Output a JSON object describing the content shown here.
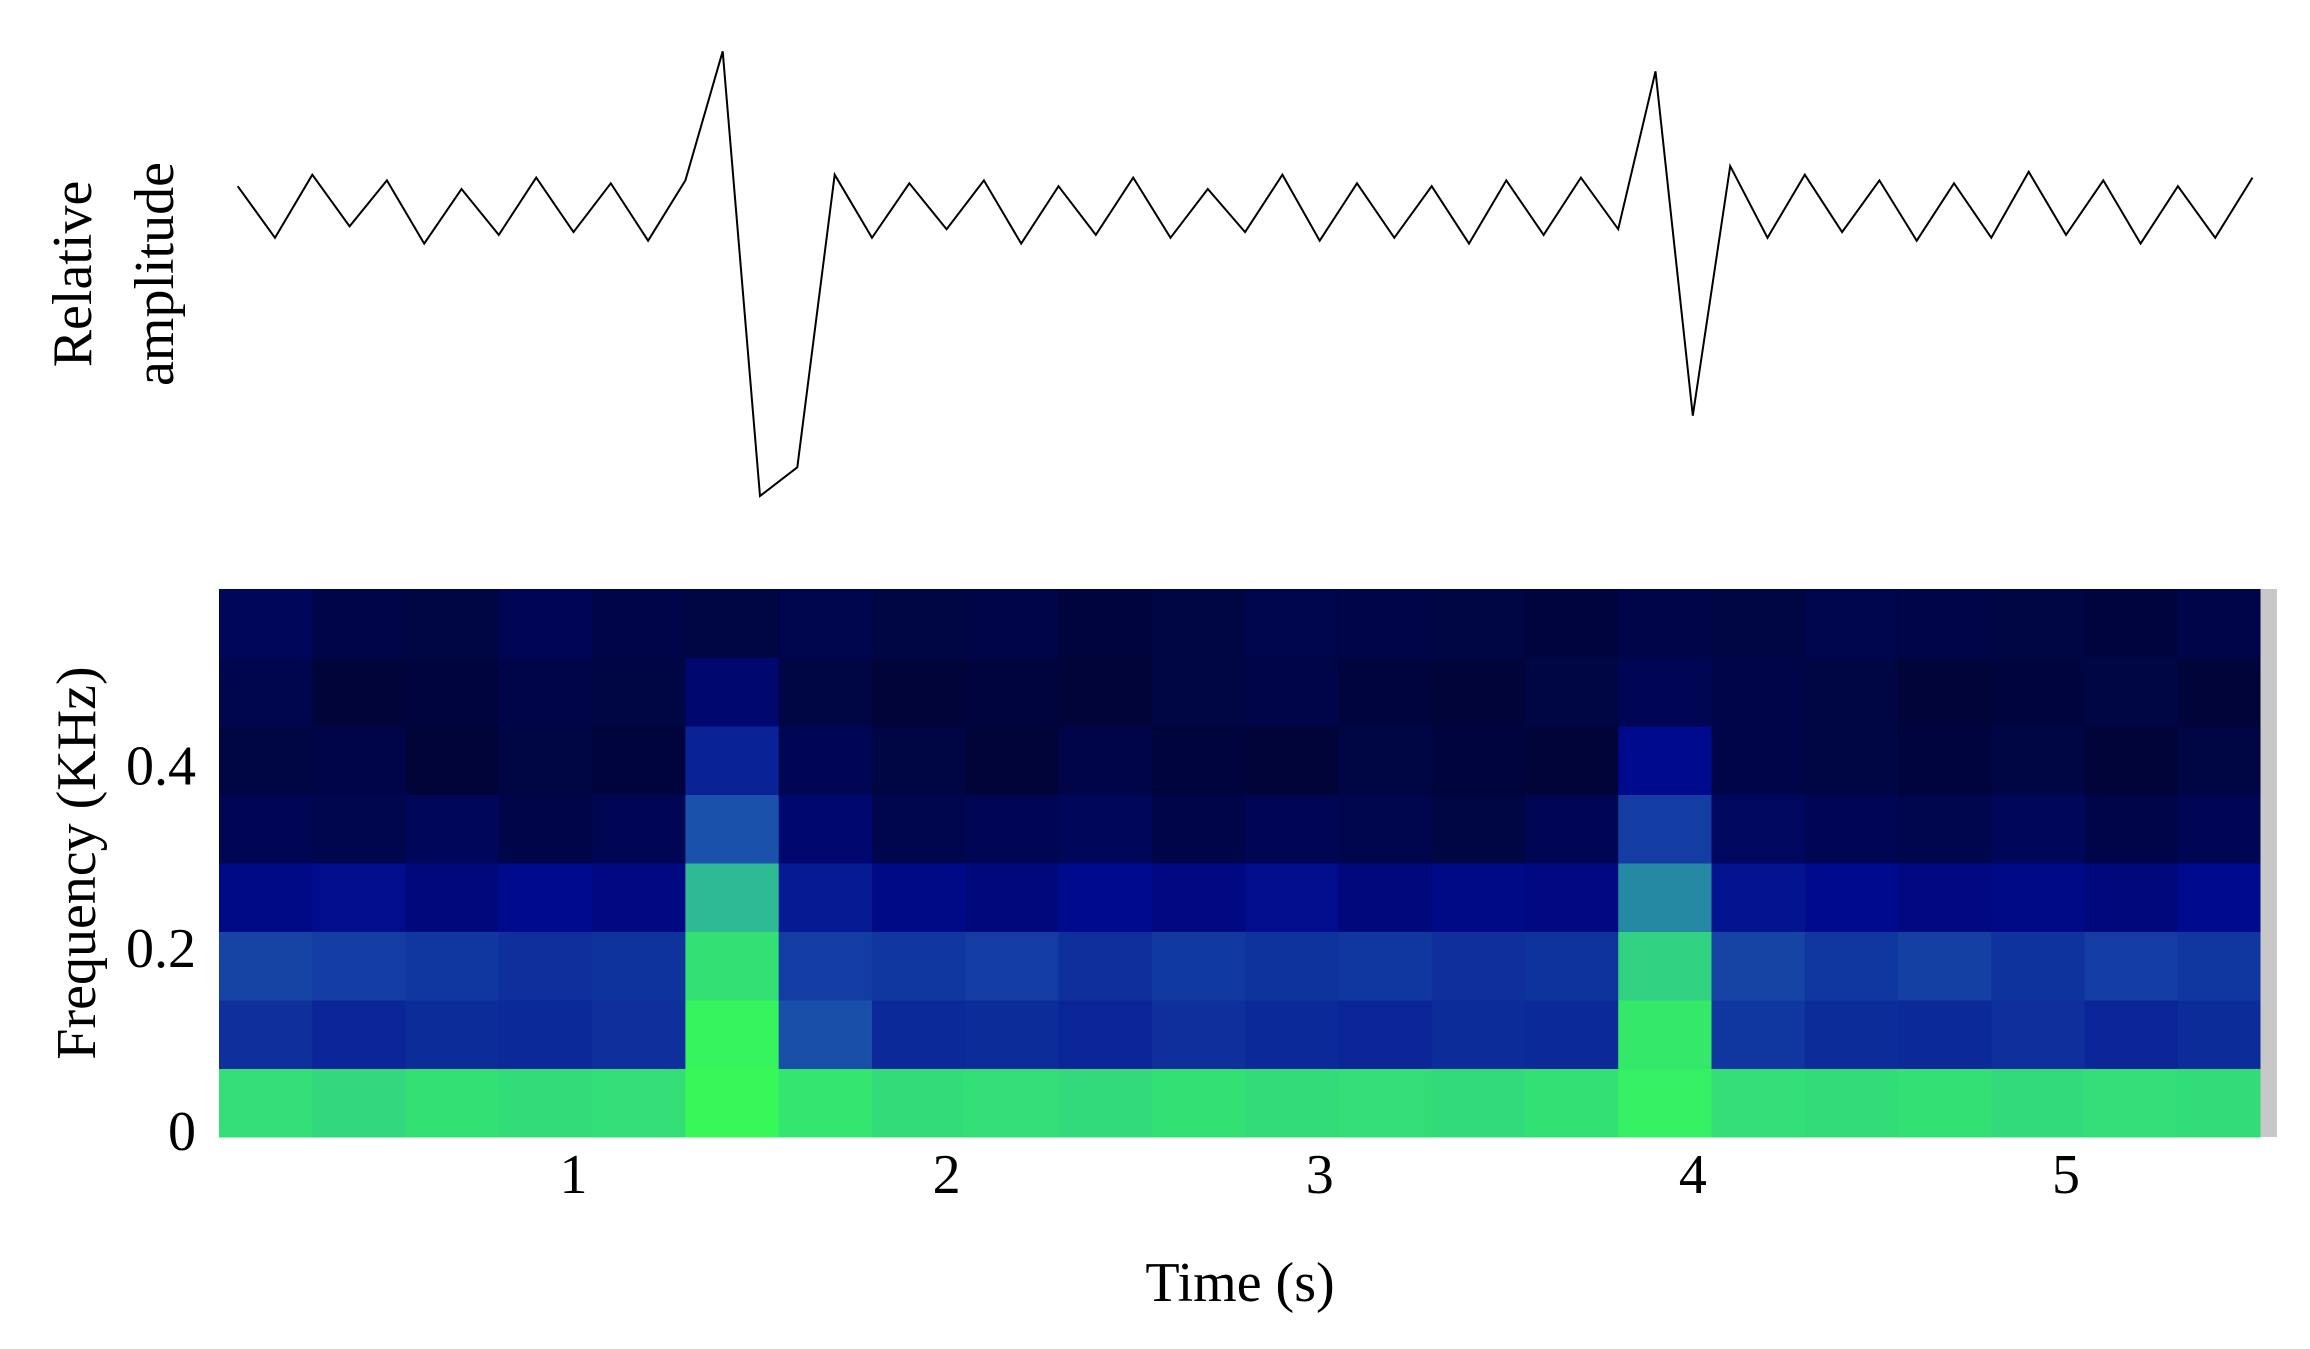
{
  "chart_data": [
    {
      "type": "line",
      "ylabel": [
        "Relative",
        "amplitude"
      ],
      "color": "#000000",
      "xlim": [
        0.05,
        5.52
      ],
      "ylim": [
        -1,
        0.6
      ],
      "x": [
        0.1,
        0.2,
        0.3,
        0.4,
        0.5,
        0.6,
        0.7,
        0.8,
        0.9,
        1.0,
        1.1,
        1.2,
        1.3,
        1.4,
        1.5,
        1.6,
        1.7,
        1.8,
        1.9,
        2.0,
        2.1,
        2.2,
        2.3,
        2.4,
        2.5,
        2.6,
        2.7,
        2.8,
        2.9,
        3.0,
        3.1,
        3.2,
        3.3,
        3.4,
        3.5,
        3.6,
        3.7,
        3.8,
        3.9,
        4.0,
        4.1,
        4.2,
        4.3,
        4.4,
        4.5,
        4.6,
        4.7,
        4.8,
        4.9,
        5.0,
        5.1,
        5.2,
        5.3,
        5.4,
        5.5
      ],
      "values": [
        0.08,
        -0.1,
        0.12,
        -0.06,
        0.1,
        -0.12,
        0.07,
        -0.09,
        0.11,
        -0.08,
        0.09,
        -0.11,
        0.1,
        0.55,
        -1.0,
        -0.9,
        0.12,
        -0.1,
        0.09,
        -0.07,
        0.1,
        -0.12,
        0.08,
        -0.09,
        0.11,
        -0.1,
        0.07,
        -0.08,
        0.12,
        -0.11,
        0.09,
        -0.1,
        0.08,
        -0.12,
        0.1,
        -0.09,
        0.11,
        -0.07,
        0.48,
        -0.72,
        0.15,
        -0.1,
        0.12,
        -0.08,
        0.1,
        -0.11,
        0.09,
        -0.1,
        0.13,
        -0.09,
        0.1,
        -0.12,
        0.08,
        -0.1,
        0.11
      ]
    },
    {
      "type": "heatmap",
      "xlabel": "Time (s)",
      "ylabel": "Frequency (KHz)",
      "xlim": [
        0.05,
        5.52
      ],
      "ylim": [
        0,
        0.6
      ],
      "xticks": [
        1,
        2,
        3,
        4,
        5
      ],
      "yticks": [
        0,
        0.2,
        0.4
      ],
      "colormap": [
        "#000000",
        "#000a8c",
        "#1f5fb0",
        "#2fc890",
        "#38ff50"
      ],
      "x_bins": [
        0.05,
        0.3,
        0.55,
        0.8,
        1.05,
        1.3,
        1.55,
        1.8,
        2.05,
        2.3,
        2.55,
        2.8,
        3.05,
        3.3,
        3.55,
        3.8,
        4.05,
        4.3,
        4.55,
        4.8,
        5.05,
        5.3,
        5.52
      ],
      "y_bins": [
        0,
        0.075,
        0.15,
        0.225,
        0.3,
        0.375,
        0.45,
        0.525,
        0.6
      ],
      "z": [
        [
          0.85,
          0.82,
          0.86,
          0.84,
          0.85,
          0.97,
          0.88,
          0.84,
          0.85,
          0.83,
          0.86,
          0.84,
          0.85,
          0.83,
          0.86,
          0.93,
          0.85,
          0.84,
          0.86,
          0.83,
          0.85,
          0.84
        ],
        [
          0.36,
          0.33,
          0.35,
          0.34,
          0.36,
          0.95,
          0.45,
          0.34,
          0.35,
          0.33,
          0.36,
          0.34,
          0.33,
          0.35,
          0.34,
          0.9,
          0.38,
          0.35,
          0.34,
          0.36,
          0.33,
          0.35
        ],
        [
          0.42,
          0.4,
          0.38,
          0.36,
          0.37,
          0.86,
          0.4,
          0.38,
          0.4,
          0.36,
          0.39,
          0.37,
          0.38,
          0.36,
          0.37,
          0.8,
          0.42,
          0.38,
          0.41,
          0.37,
          0.4,
          0.38
        ],
        [
          0.24,
          0.26,
          0.22,
          0.25,
          0.23,
          0.72,
          0.3,
          0.24,
          0.22,
          0.25,
          0.23,
          0.26,
          0.22,
          0.24,
          0.23,
          0.6,
          0.28,
          0.25,
          0.23,
          0.24,
          0.22,
          0.25
        ],
        [
          0.15,
          0.14,
          0.16,
          0.13,
          0.15,
          0.46,
          0.2,
          0.14,
          0.15,
          0.16,
          0.13,
          0.15,
          0.14,
          0.12,
          0.15,
          0.4,
          0.17,
          0.15,
          0.14,
          0.16,
          0.13,
          0.15
        ],
        [
          0.12,
          0.13,
          0.1,
          0.12,
          0.11,
          0.32,
          0.15,
          0.12,
          0.1,
          0.13,
          0.11,
          0.1,
          0.12,
          0.11,
          0.1,
          0.25,
          0.13,
          0.12,
          0.11,
          0.12,
          0.1,
          0.12
        ],
        [
          0.14,
          0.1,
          0.11,
          0.13,
          0.12,
          0.2,
          0.12,
          0.1,
          0.11,
          0.1,
          0.12,
          0.13,
          0.11,
          0.1,
          0.12,
          0.15,
          0.13,
          0.12,
          0.1,
          0.11,
          0.12,
          0.1
        ],
        [
          0.16,
          0.13,
          0.12,
          0.15,
          0.13,
          0.12,
          0.14,
          0.12,
          0.13,
          0.11,
          0.12,
          0.14,
          0.13,
          0.12,
          0.11,
          0.13,
          0.12,
          0.14,
          0.13,
          0.12,
          0.11,
          0.13
        ]
      ]
    }
  ]
}
